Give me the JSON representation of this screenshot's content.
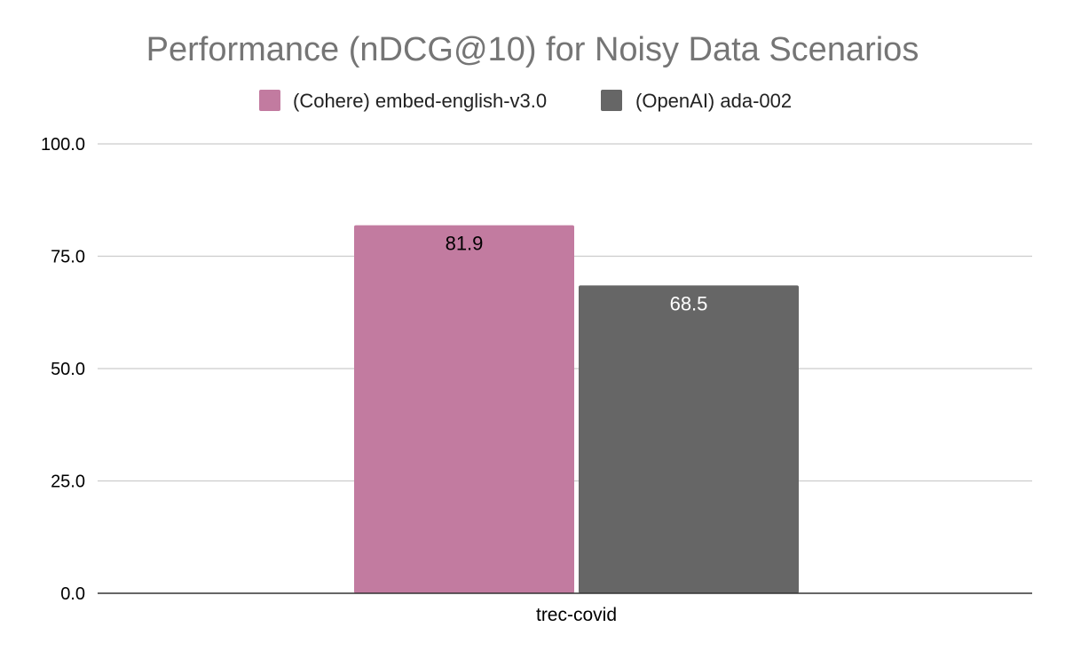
{
  "chart_data": {
    "type": "bar",
    "title": "Performance (nDCG@10) for Noisy Data Scenarios",
    "categories": [
      "trec-covid"
    ],
    "series": [
      {
        "name": "(Cohere) embed-english-v3.0",
        "values": [
          81.9
        ],
        "color": "#c27ba0",
        "label_color": "#000000"
      },
      {
        "name": "(OpenAI) ada-002",
        "values": [
          68.5
        ],
        "color": "#666666",
        "label_color": "#ffffff"
      }
    ],
    "data_labels": [
      "81.9",
      "68.5"
    ],
    "yticks": [
      "0.0",
      "25.0",
      "50.0",
      "75.0",
      "100.0"
    ],
    "ylim": [
      0,
      100
    ],
    "xlabel": "",
    "ylabel": "",
    "grid": true,
    "legend_position": "top-center"
  }
}
